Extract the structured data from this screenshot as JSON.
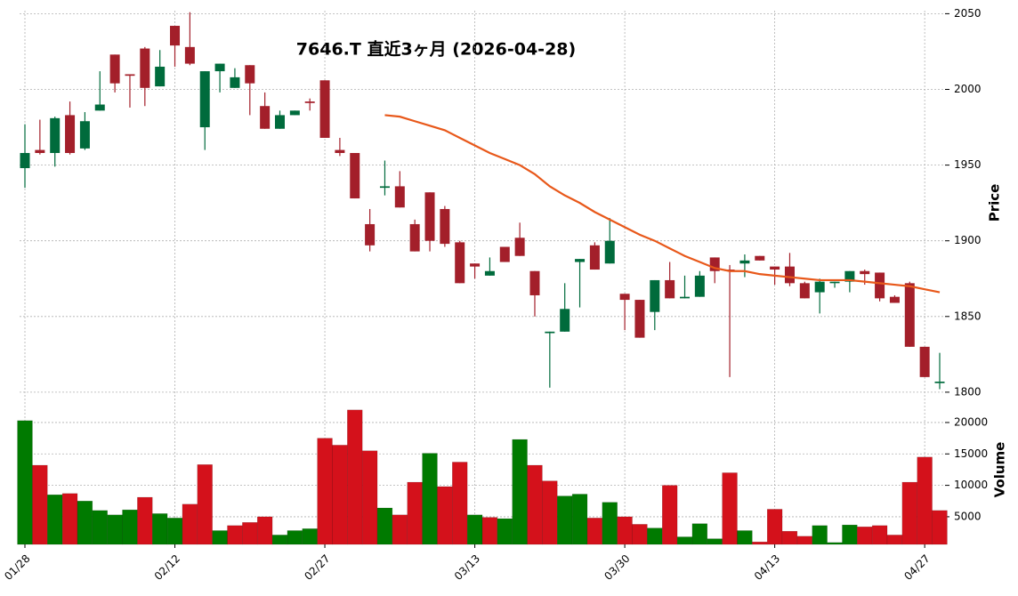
{
  "chart_data": {
    "type": "candlestick",
    "title": "7646.T  直近3ヶ月  (2026-04-28)",
    "categories": [
      "01/28",
      null,
      null,
      null,
      null,
      null,
      null,
      null,
      null,
      null,
      "02/12",
      null,
      null,
      null,
      null,
      null,
      null,
      null,
      null,
      null,
      "02/27",
      null,
      null,
      null,
      null,
      null,
      null,
      null,
      null,
      null,
      "03/13",
      null,
      null,
      null,
      null,
      null,
      null,
      null,
      null,
      null,
      "03/30",
      null,
      null,
      null,
      null,
      null,
      null,
      null,
      null,
      null,
      "04/13",
      null,
      null,
      null,
      null,
      null,
      null,
      null,
      null,
      null,
      "04/27",
      null
    ],
    "open": [
      1948,
      1960,
      1958,
      1983,
      1961,
      1986,
      2023,
      2010,
      2027,
      2002,
      2042,
      2028,
      1975,
      2012,
      2001,
      2016,
      1989,
      1974,
      1983,
      1992,
      2006,
      1960,
      1958,
      1911,
      1935,
      1936,
      1911,
      1932,
      1921,
      1899,
      1885,
      1877,
      1896,
      1902,
      1880,
      1839,
      1840,
      1886,
      1897,
      1885,
      1865,
      1861,
      1853,
      1874,
      1862,
      1863,
      1889,
      1881,
      1885,
      1890,
      1883,
      1883,
      1872,
      1866,
      1872,
      1873,
      1880,
      1879,
      1863,
      1872,
      1830,
      1806
    ],
    "high": [
      1977,
      1980,
      1982,
      1992,
      1985,
      2012,
      2023,
      2010,
      2028,
      2026,
      2042,
      2051,
      2012,
      2017,
      2014,
      2016,
      1998,
      1986,
      1986,
      1994,
      2006,
      1968,
      1958,
      1921,
      1953,
      1946,
      1914,
      1932,
      1923,
      1900,
      1885,
      1889,
      1896,
      1912,
      1880,
      1840,
      1872,
      1888,
      1899,
      1915,
      1865,
      1861,
      1874,
      1886,
      1877,
      1880,
      1889,
      1884,
      1891,
      1890,
      1883,
      1892,
      1873,
      1875,
      1873,
      1880,
      1881,
      1879,
      1864,
      1873,
      1830,
      1826
    ],
    "low": [
      1935,
      1957,
      1949,
      1957,
      1960,
      1986,
      1998,
      1988,
      1989,
      2002,
      2015,
      2016,
      1960,
      1998,
      2001,
      1983,
      1974,
      1974,
      1983,
      1986,
      1968,
      1956,
      1928,
      1893,
      1930,
      1922,
      1893,
      1893,
      1896,
      1872,
      1875,
      1877,
      1886,
      1890,
      1850,
      1803,
      1840,
      1856,
      1881,
      1885,
      1841,
      1836,
      1841,
      1862,
      1862,
      1863,
      1872,
      1810,
      1876,
      1887,
      1871,
      1870,
      1862,
      1852,
      1869,
      1866,
      1871,
      1860,
      1859,
      1830,
      1810,
      1802
    ],
    "close": [
      1958,
      1958,
      1981,
      1958,
      1979,
      1990,
      2004,
      2009,
      2001,
      2015,
      2029,
      2017,
      2012,
      2017,
      2008,
      2004,
      1974,
      1983,
      1986,
      1991,
      1968,
      1958,
      1928,
      1897,
      1936,
      1922,
      1893,
      1900,
      1898,
      1872,
      1883,
      1880,
      1886,
      1890,
      1864,
      1840,
      1855,
      1888,
      1881,
      1900,
      1861,
      1836,
      1874,
      1862,
      1863,
      1877,
      1880,
      1880,
      1887,
      1887,
      1881,
      1872,
      1862,
      1873,
      1873,
      1880,
      1878,
      1862,
      1859,
      1830,
      1810,
      1807
    ],
    "up_color": "#006b3c",
    "down_color": "#a31f2a",
    "moving_average": {
      "color": "#e8581a",
      "values": [
        null,
        null,
        null,
        null,
        null,
        null,
        null,
        null,
        null,
        null,
        null,
        null,
        null,
        null,
        null,
        null,
        null,
        null,
        null,
        null,
        null,
        null,
        null,
        null,
        1983,
        1982,
        1979,
        1976,
        1973,
        1968,
        1963,
        1958,
        1954,
        1950,
        1944,
        1936,
        1930,
        1925,
        1919,
        1914,
        1909,
        1904,
        1900,
        1895,
        1890,
        1886,
        1882,
        1880,
        1880,
        1878,
        1877,
        1876,
        1875,
        1874,
        1874,
        1874,
        1873,
        1872,
        1871,
        1870,
        1868,
        1866
      ]
    },
    "ylim": [
      1797,
      2052
    ],
    "yticks": [
      1800,
      1850,
      1900,
      1950,
      2000,
      2050
    ],
    "ylabel": "Price",
    "volume": {
      "ylabel": "Volume",
      "ylim": [
        600,
        24100
      ],
      "yticks": [
        5000,
        10000,
        15000,
        20000
      ],
      "values": [
        20300,
        13200,
        8500,
        8700,
        7500,
        6000,
        5300,
        6100,
        8100,
        5500,
        4800,
        7000,
        13300,
        2800,
        3600,
        4100,
        5000,
        2100,
        2800,
        3100,
        17500,
        16400,
        22000,
        15500,
        6400,
        5300,
        10500,
        15100,
        9800,
        13700,
        5300,
        4900,
        4700,
        17300,
        13200,
        10700,
        8300,
        8600,
        4800,
        7300,
        5000,
        3800,
        3200,
        10000,
        1800,
        3900,
        1500,
        12000,
        2800,
        1000,
        6200,
        2700,
        1900,
        3600,
        900,
        3700,
        3400,
        3600,
        2100,
        10500,
        14500,
        6000
      ],
      "colors": [
        "#007a00",
        "#d4111b",
        "#007a00",
        "#d4111b",
        "#007a00",
        "#007a00",
        "#007a00",
        "#007a00",
        "#d4111b",
        "#007a00",
        "#007a00",
        "#d4111b",
        "#d4111b",
        "#007a00",
        "#d4111b",
        "#d4111b",
        "#d4111b",
        "#007a00",
        "#007a00",
        "#007a00",
        "#d4111b",
        "#d4111b",
        "#d4111b",
        "#d4111b",
        "#007a00",
        "#d4111b",
        "#d4111b",
        "#007a00",
        "#d4111b",
        "#d4111b",
        "#007a00",
        "#d4111b",
        "#007a00",
        "#007a00",
        "#d4111b",
        "#d4111b",
        "#007a00",
        "#007a00",
        "#d4111b",
        "#007a00",
        "#d4111b",
        "#d4111b",
        "#007a00",
        "#d4111b",
        "#007a00",
        "#007a00",
        "#007a00",
        "#d4111b",
        "#007a00",
        "#d4111b",
        "#d4111b",
        "#d4111b",
        "#d4111b",
        "#007a00",
        "#007a00",
        "#007a00",
        "#d4111b",
        "#d4111b",
        "#d4111b",
        "#d4111b",
        "#d4111b",
        "#d4111b"
      ]
    },
    "grid": true
  }
}
